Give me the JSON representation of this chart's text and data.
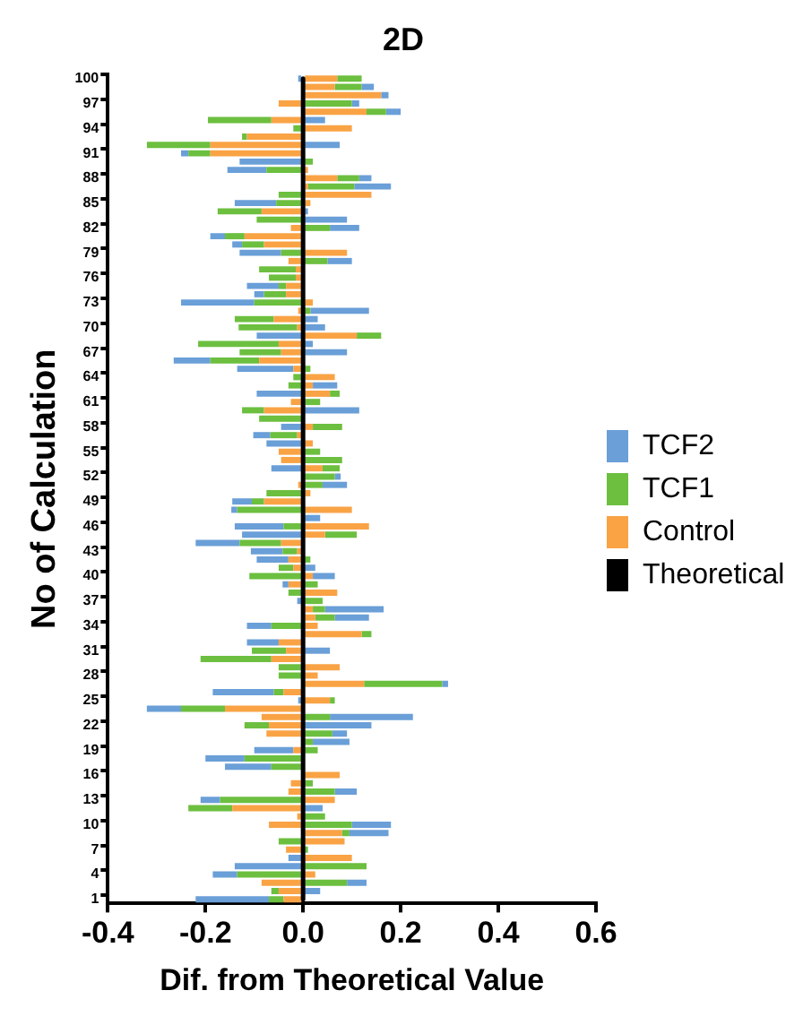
{
  "chart_data": {
    "type": "bar",
    "orientation": "horizontal",
    "stacked": true,
    "title": "2D",
    "xlabel": "Dif. from Theoretical Value",
    "ylabel": "No of Calculation",
    "categories": [
      "100",
      null,
      null,
      "97",
      null,
      null,
      "94",
      null,
      null,
      "91",
      null,
      null,
      "88",
      null,
      null,
      "85",
      null,
      null,
      "82",
      null,
      null,
      "79",
      null,
      null,
      "76",
      null,
      null,
      "73",
      null,
      null,
      "70",
      null,
      null,
      "67",
      null,
      null,
      "64",
      null,
      null,
      "61",
      null,
      null,
      "58",
      null,
      null,
      "55",
      null,
      null,
      "52",
      null,
      null,
      "49",
      null,
      null,
      "46",
      null,
      null,
      "43",
      null,
      null,
      "40",
      null,
      null,
      "37",
      null,
      null,
      "34",
      null,
      null,
      "31",
      null,
      null,
      "28",
      null,
      null,
      "25",
      null,
      null,
      "22",
      null,
      null,
      "19",
      null,
      null,
      "16",
      null,
      null,
      "13",
      null,
      null,
      "10",
      null,
      null,
      "7",
      null,
      null,
      "4",
      null,
      null,
      "1"
    ],
    "series": [
      {
        "name": "Control",
        "color": "#f9a345",
        "values": [
          0.07,
          0.065,
          0.16,
          -0.05,
          0.13,
          -0.065,
          0.1,
          -0.115,
          -0.19,
          -0.19,
          0,
          0.01,
          0.07,
          0.01,
          0.14,
          0.015,
          -0.085,
          0,
          -0.025,
          -0.12,
          -0.08,
          0.09,
          -0.03,
          -0.015,
          -0.015,
          -0.035,
          -0.035,
          0.02,
          -0.01,
          -0.06,
          -0.012,
          0.11,
          -0.05,
          -0.045,
          -0.09,
          -0.02,
          0.065,
          0.02,
          0.055,
          -0.025,
          -0.08,
          0,
          0.02,
          -0.012,
          0.02,
          -0.05,
          -0.045,
          0.04,
          0,
          -0.01,
          0.015,
          -0.08,
          0.1,
          0,
          0.135,
          0.045,
          -0.045,
          -0.012,
          -0.03,
          -0.02,
          0.02,
          -0.03,
          0.07,
          0,
          0.02,
          0.025,
          0.03,
          0.12,
          -0.05,
          -0.035,
          -0.065,
          0.075,
          0.03,
          0.125,
          -0.04,
          0.055,
          -0.16,
          -0.085,
          -0.07,
          -0.075,
          0,
          -0.02,
          0,
          0,
          0.075,
          -0.025,
          -0.03,
          0.065,
          -0.145,
          -0.012,
          -0.07,
          0.08,
          0.085,
          -0.035,
          0.1,
          0,
          0.025,
          -0.085,
          -0.05,
          -0.04
        ]
      },
      {
        "name": "TCF1",
        "color": "#6cbf3f",
        "values": [
          0.05,
          0.055,
          0,
          0.1,
          0.04,
          -0.13,
          -0.02,
          -0.01,
          -0.13,
          -0.045,
          0.02,
          -0.075,
          0.045,
          0.095,
          -0.05,
          -0.055,
          -0.09,
          -0.095,
          0.055,
          -0.04,
          -0.045,
          -0.045,
          0.05,
          -0.075,
          -0.055,
          -0.015,
          -0.045,
          -0.1,
          0.015,
          -0.08,
          -0.12,
          0.05,
          -0.165,
          -0.085,
          -0.1,
          0.015,
          -0.02,
          -0.03,
          0.02,
          0.035,
          -0.045,
          -0.09,
          0.06,
          -0.055,
          0,
          0.035,
          0.08,
          0.035,
          0.065,
          0.04,
          -0.075,
          -0.025,
          -0.135,
          0,
          -0.04,
          0.065,
          -0.085,
          -0.03,
          0.015,
          -0.03,
          -0.11,
          0.03,
          -0.03,
          0.04,
          0.025,
          0.04,
          -0.065,
          0.02,
          0,
          -0.07,
          -0.145,
          -0.05,
          -0.05,
          0.16,
          -0.02,
          0.01,
          -0.09,
          0.055,
          -0.05,
          0.06,
          0.02,
          0.03,
          -0.12,
          -0.065,
          0,
          0.02,
          0.065,
          -0.17,
          -0.09,
          0.045,
          0.1,
          0.015,
          -0.05,
          0.01,
          0,
          0.13,
          -0.135,
          0.09,
          -0.015,
          -0.03
        ]
      },
      {
        "name": "TCF2",
        "color": "#6a9fd8",
        "values": [
          -0.01,
          0.025,
          0.015,
          0.015,
          0.03,
          0.045,
          0,
          0,
          0.075,
          -0.015,
          -0.13,
          -0.08,
          0.025,
          0.075,
          0,
          -0.085,
          0.01,
          0.09,
          0.06,
          -0.03,
          -0.02,
          -0.085,
          0.05,
          0,
          0,
          -0.065,
          -0.02,
          -0.15,
          0.12,
          0.03,
          0.045,
          -0.095,
          0.02,
          0.09,
          -0.075,
          -0.115,
          0,
          0.05,
          -0.095,
          0,
          0.115,
          0,
          -0.045,
          -0.035,
          -0.075,
          0,
          0,
          -0.065,
          0.012,
          0.05,
          0,
          -0.04,
          -0.012,
          0.035,
          -0.1,
          -0.125,
          -0.09,
          -0.065,
          -0.065,
          0.025,
          0.045,
          -0.012,
          0,
          -0.012,
          0.12,
          0.07,
          -0.05,
          0,
          -0.065,
          0.055,
          0,
          0,
          0,
          0.012,
          -0.125,
          -0.01,
          -0.07,
          0.17,
          0.14,
          0.03,
          0.075,
          -0.08,
          -0.08,
          -0.095,
          0,
          0,
          0.045,
          -0.04,
          0.04,
          0,
          0.08,
          0.08,
          0,
          0,
          -0.03,
          -0.14,
          -0.05,
          0.04,
          0.035,
          -0.15
        ]
      },
      {
        "name": "Theoretical",
        "type": "line",
        "color": "#000000",
        "values": [
          0,
          0,
          0,
          0,
          0,
          0,
          0,
          0,
          0,
          0,
          0,
          0,
          0,
          0,
          0,
          0,
          0,
          0,
          0,
          0,
          0,
          0,
          0,
          0,
          0,
          0,
          0,
          0,
          0,
          0,
          0,
          0,
          0,
          0,
          0,
          0,
          0,
          0,
          0,
          0,
          0,
          0,
          0,
          0,
          0,
          0,
          0,
          0,
          0,
          0,
          0,
          0,
          0,
          0,
          0,
          0,
          0,
          0,
          0,
          0,
          0,
          0,
          0,
          0,
          0,
          0,
          0,
          0,
          0,
          0,
          0,
          0,
          0,
          0,
          0,
          0,
          0,
          0,
          0,
          0,
          0,
          0,
          0,
          0,
          0,
          0,
          0,
          0,
          0,
          0,
          0,
          0,
          0,
          0,
          0,
          0,
          0,
          0,
          0,
          0
        ]
      }
    ],
    "xlim": [
      -0.4,
      0.6
    ],
    "xticks": [
      -0.4,
      -0.2,
      {
        "value": 0,
        "label": "0.0"
      },
      0.2,
      0.4,
      0.6
    ],
    "grid": false,
    "legend": "right",
    "marker": "none"
  }
}
